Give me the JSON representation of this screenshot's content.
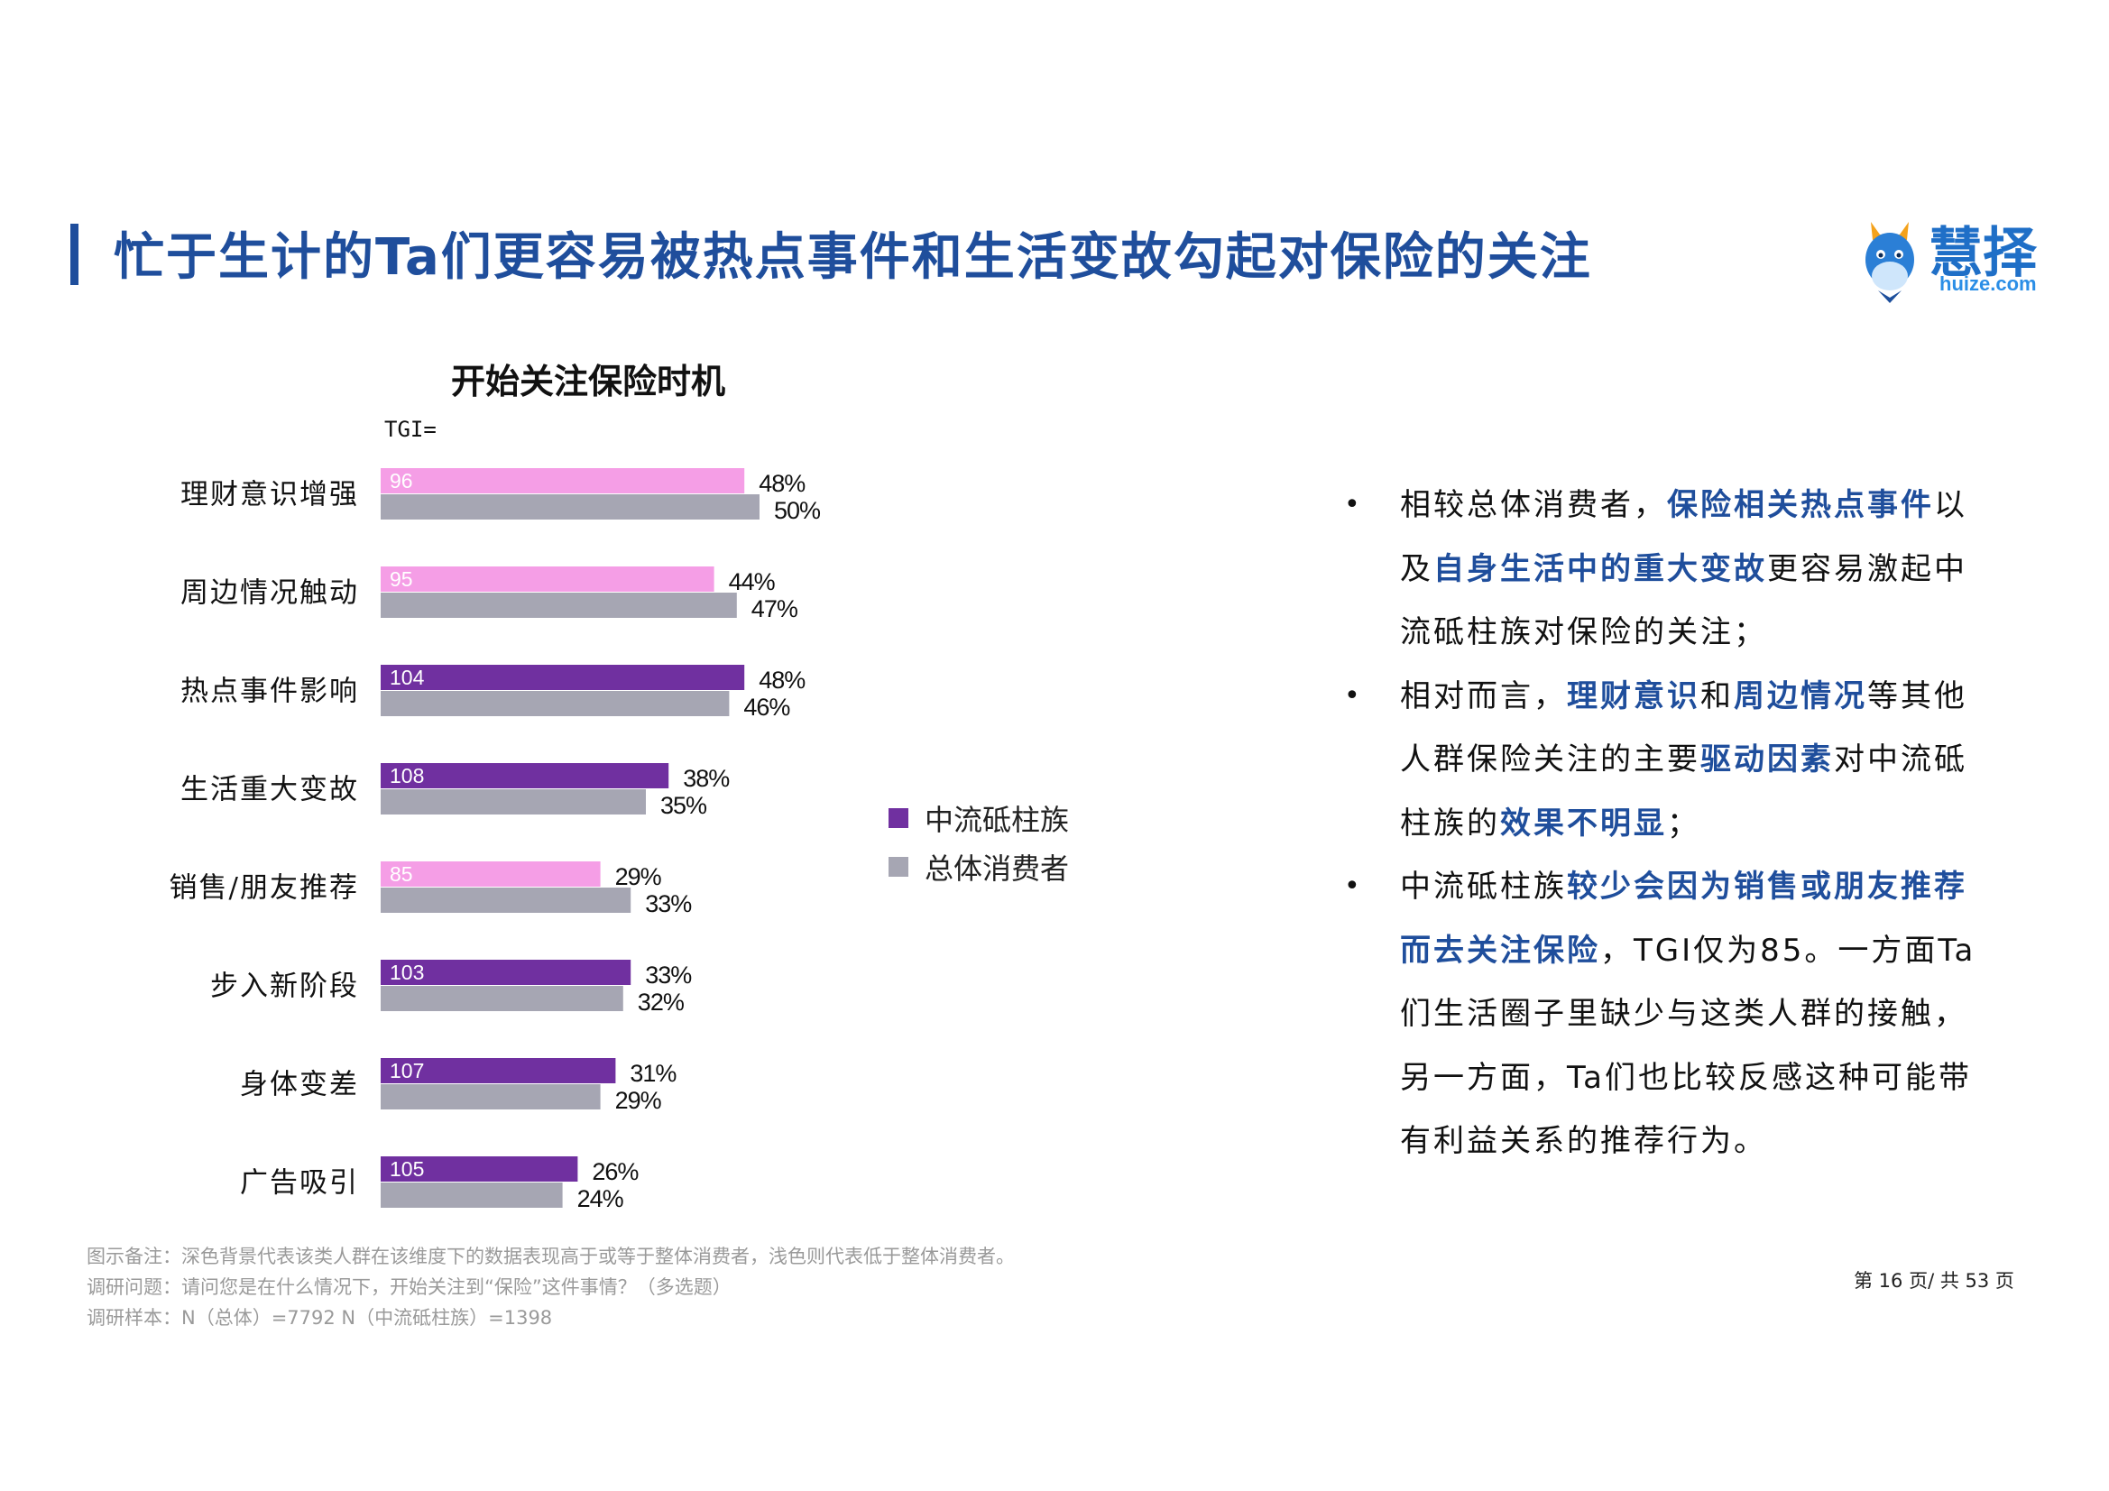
{
  "header": {
    "title": "忙于生计的Ta们更容易被热点事件和生活变故勾起对保险的关注"
  },
  "logo": {
    "cn": "慧择",
    "en": "huize.com"
  },
  "colors": {
    "title_blue": "#1f4e9c",
    "core_dark": "#7030a0",
    "core_light": "#f59ee6",
    "total": "#a6a6b3"
  },
  "chart_data": {
    "type": "bar",
    "orientation": "horizontal",
    "title": "开始关注保险时机",
    "tgi_label": "TGI=",
    "categories": [
      "理财意识增强",
      "周边情况触动",
      "热点事件影响",
      "生活重大变故",
      "销售/朋友推荐",
      "步入新阶段",
      "身体变差",
      "广告吸引"
    ],
    "series": [
      {
        "name": "中流砥柱族",
        "values": [
          48,
          44,
          48,
          38,
          29,
          33,
          31,
          26
        ],
        "tgi": [
          96,
          95,
          104,
          108,
          85,
          103,
          107,
          105
        ]
      },
      {
        "name": "总体消费者",
        "values": [
          50,
          47,
          46,
          35,
          33,
          32,
          29,
          24
        ]
      }
    ],
    "value_suffix": "%",
    "legend": "right"
  },
  "bullets": [
    [
      {
        "t": "相较总体消费者，"
      },
      {
        "t": "保险相关热点事件",
        "hl": true
      },
      {
        "t": "以及"
      },
      {
        "t": "自身生活中的重大变故",
        "hl": true
      },
      {
        "t": "更容易激起中流砥柱族对保险的关注；"
      }
    ],
    [
      {
        "t": "相对而言，"
      },
      {
        "t": "理财意识",
        "hl": true
      },
      {
        "t": "和"
      },
      {
        "t": "周边情况",
        "hl": true
      },
      {
        "t": "等其他人群保险关注的主要"
      },
      {
        "t": "驱动因素",
        "hl": true
      },
      {
        "t": "对中流砥柱族的"
      },
      {
        "t": "效果不明显",
        "hl": true
      },
      {
        "t": "；"
      }
    ],
    [
      {
        "t": "中流砥柱族"
      },
      {
        "t": "较少会因为销售或朋友推荐而去关注保险",
        "hl": true
      },
      {
        "t": "，TGI仅为85。一方面Ta们生活圈子里缺少与这类人群的接触，另一方面，Ta们也比较反感这种可能带有利益关系的推荐行为。"
      }
    ]
  ],
  "notes": {
    "legend_note": "图示备注：深色背景代表该类人群在该维度下的数据表现高于或等于整体消费者，浅色则代表低于整体消费者。",
    "question": "调研问题：请问您是在什么情况下，开始关注到“保险”这件事情？（多选题）",
    "sample": "调研样本：N（总体）=7792      N（中流砥柱族）=1398"
  },
  "page": "第 16 页/ 共 53 页"
}
